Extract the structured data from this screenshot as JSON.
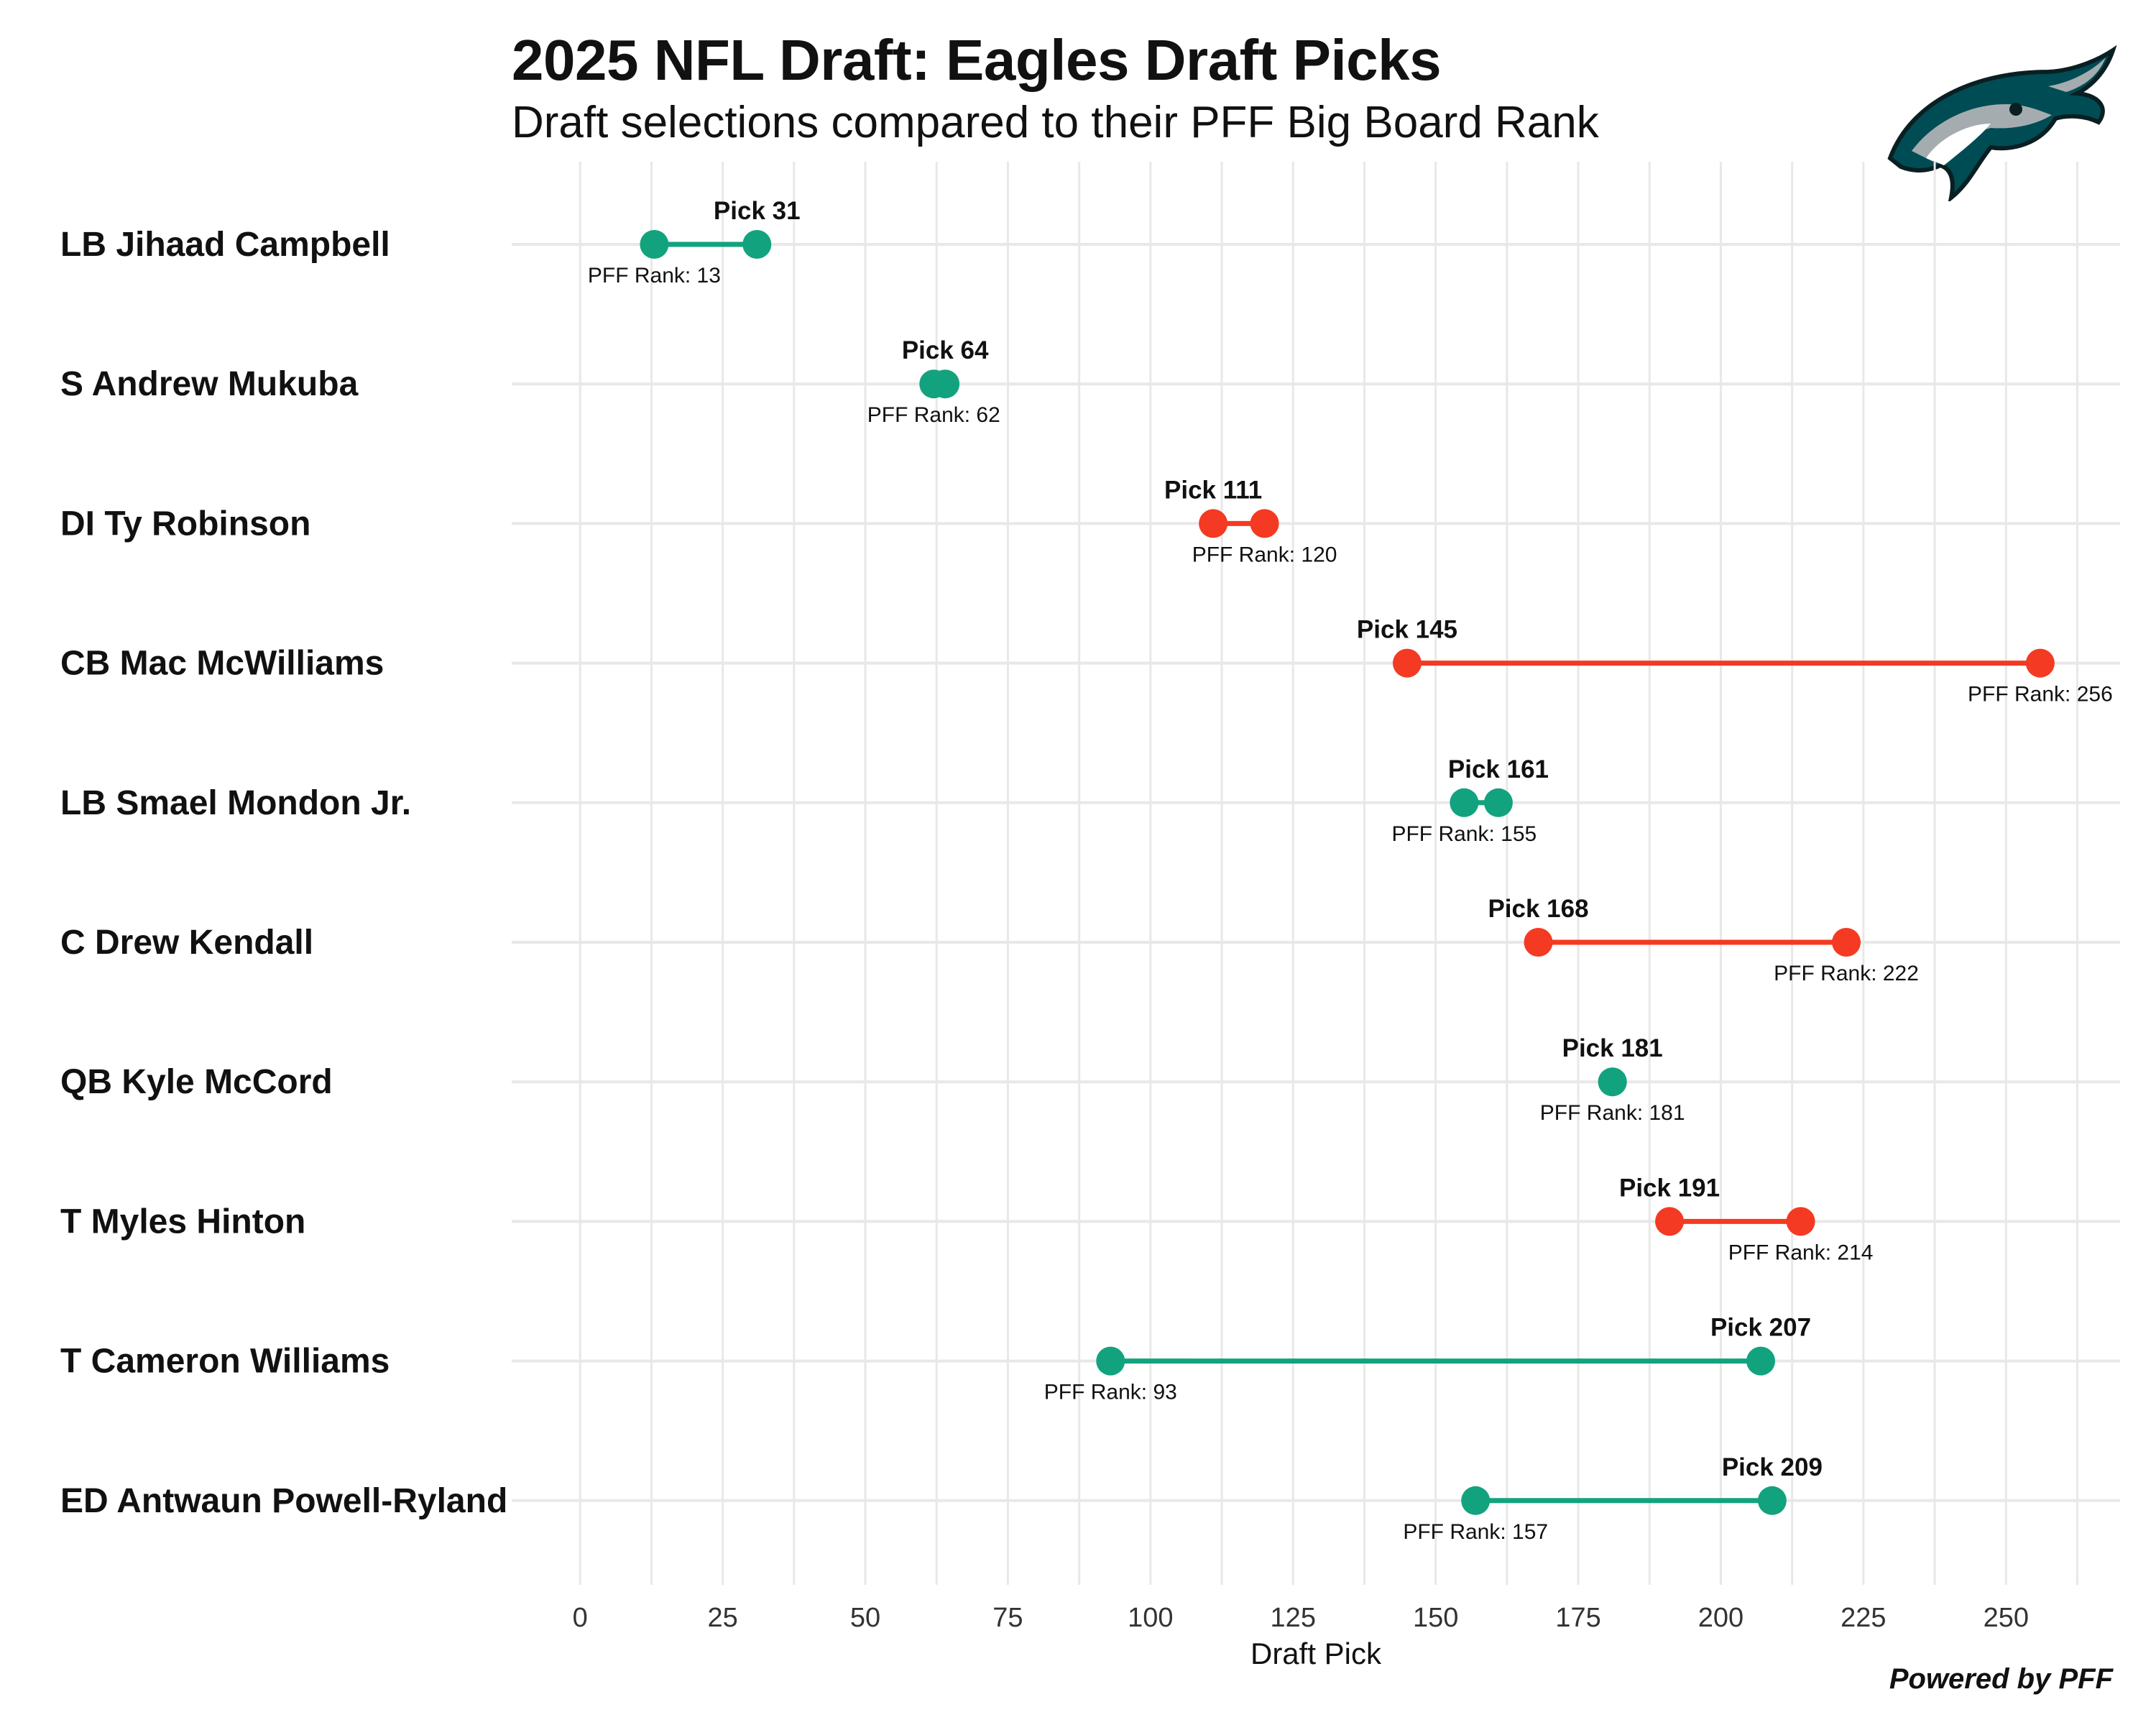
{
  "header": {
    "title": "2025 NFL Draft: Eagles Draft Picks",
    "subtitle": "Draft selections compared to their PFF Big Board Rank"
  },
  "footer": {
    "credit": "Powered by PFF"
  },
  "logo": {
    "icon": "eagle-head-logo"
  },
  "colors": {
    "reach": "#12a37e",
    "value": "#f43a22",
    "grid": "#e8e8e8",
    "text": "#111111"
  },
  "chart_data": {
    "type": "dumbbell",
    "xlabel": "Draft Pick",
    "ylabel": "",
    "xlim": [
      -12,
      270
    ],
    "xticks": [
      0,
      25,
      50,
      75,
      100,
      125,
      150,
      175,
      200,
      225,
      250
    ],
    "grid": true,
    "pick_label_prefix": "Pick",
    "rank_label_prefix": "PFF Rank:",
    "players": [
      {
        "label": "LB Jihaad Campbell",
        "pick": 31,
        "pff_rank": 13,
        "color": "#12a37e"
      },
      {
        "label": "S Andrew Mukuba",
        "pick": 64,
        "pff_rank": 62,
        "color": "#12a37e"
      },
      {
        "label": "DI Ty Robinson",
        "pick": 111,
        "pff_rank": 120,
        "color": "#f43a22"
      },
      {
        "label": "CB Mac McWilliams",
        "pick": 145,
        "pff_rank": 256,
        "color": "#f43a22"
      },
      {
        "label": "LB Smael Mondon Jr.",
        "pick": 161,
        "pff_rank": 155,
        "color": "#12a37e"
      },
      {
        "label": "C Drew Kendall",
        "pick": 168,
        "pff_rank": 222,
        "color": "#f43a22"
      },
      {
        "label": "QB Kyle McCord",
        "pick": 181,
        "pff_rank": 181,
        "color": "#12a37e"
      },
      {
        "label": "T Myles Hinton",
        "pick": 191,
        "pff_rank": 214,
        "color": "#f43a22"
      },
      {
        "label": "T Cameron Williams",
        "pick": 207,
        "pff_rank": 93,
        "color": "#12a37e"
      },
      {
        "label": "ED Antwaun Powell-Ryland",
        "pick": 209,
        "pff_rank": 157,
        "color": "#12a37e"
      }
    ]
  }
}
